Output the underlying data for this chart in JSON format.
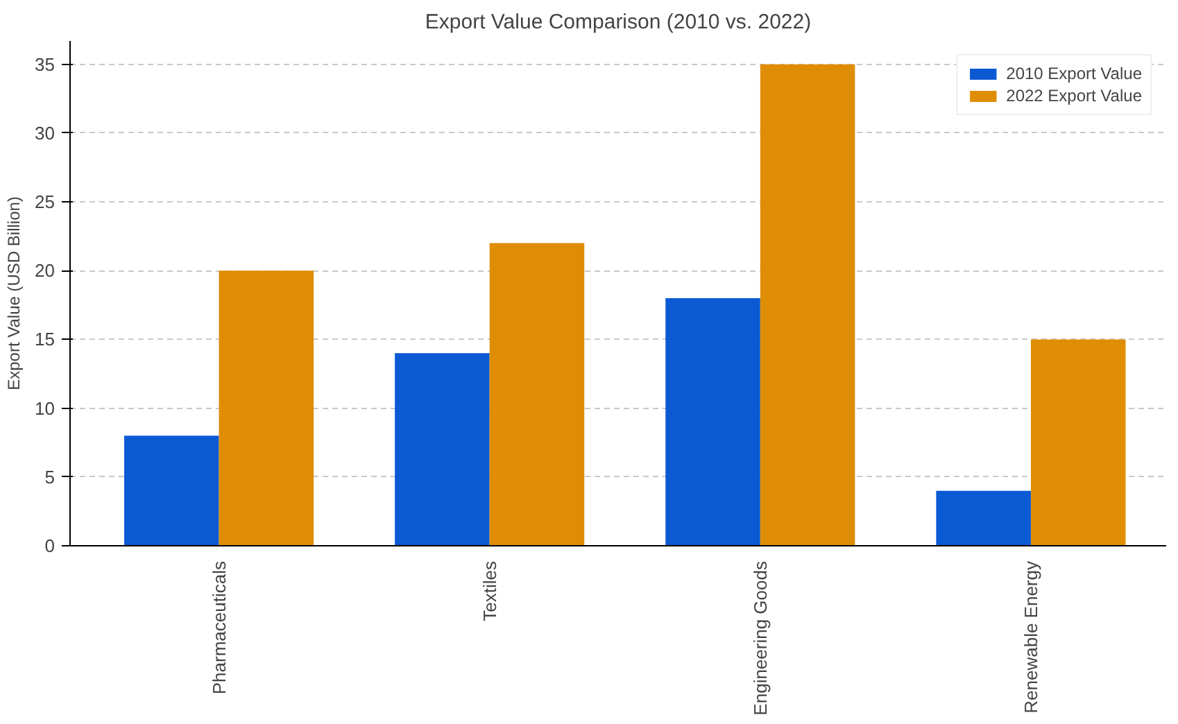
{
  "chart_data": {
    "type": "bar",
    "title": "Export Value Comparison (2010 vs. 2022)",
    "ylabel": "Export Value (USD Billion)",
    "categories": [
      "Pharmaceuticals",
      "Textiles",
      "Engineering Goods",
      "Renewable Energy"
    ],
    "series": [
      {
        "name": "2010 Export Value",
        "color": "#0b5ad4",
        "values": [
          8,
          14,
          18,
          4
        ]
      },
      {
        "name": "2022 Export Value",
        "color": "#e08d06",
        "values": [
          20,
          22,
          35,
          15
        ]
      }
    ],
    "ylim": [
      0,
      36.7
    ],
    "yticks": [
      0,
      5,
      10,
      15,
      20,
      25,
      30,
      35
    ],
    "grid": "y",
    "legend": "top right"
  }
}
